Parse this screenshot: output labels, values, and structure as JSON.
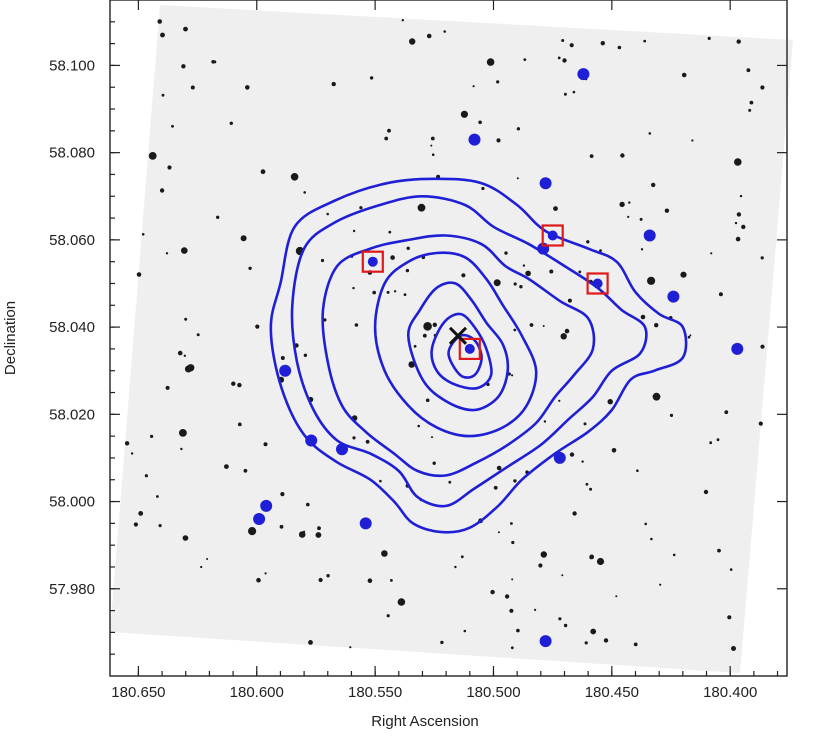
{
  "chart_data": {
    "type": "scatter",
    "title": "",
    "xlabel": "Right Ascension",
    "ylabel": "Declination",
    "xlim": [
      180.662,
      180.376
    ],
    "ylim": [
      57.96,
      58.115
    ],
    "x_ticks": [
      180.65,
      180.6,
      180.55,
      180.5,
      180.45,
      180.4
    ],
    "x_tick_labels": [
      "180.650",
      "180.600",
      "180.550",
      "180.500",
      "180.450",
      "180.400"
    ],
    "y_ticks": [
      57.98,
      58.0,
      58.02,
      58.04,
      58.06,
      58.08,
      58.1
    ],
    "y_tick_labels": [
      "57.980",
      "58.000",
      "58.020",
      "58.040",
      "58.060",
      "58.080",
      "58.100"
    ],
    "grid": false,
    "background": "inverted grayscale sky image with dark point sources",
    "colors": {
      "contour": "#1f1fd6",
      "galaxy": "#1f1fd6",
      "box": "#e01818",
      "cross": "#111111",
      "frame": "#222222"
    },
    "center_cross": {
      "x": 180.515,
      "y": 58.038
    },
    "galaxies": [
      {
        "x": 180.462,
        "y": 58.098
      },
      {
        "x": 180.508,
        "y": 58.083
      },
      {
        "x": 180.478,
        "y": 58.073
      },
      {
        "x": 180.434,
        "y": 58.061
      },
      {
        "x": 180.424,
        "y": 58.047
      },
      {
        "x": 180.397,
        "y": 58.035
      },
      {
        "x": 180.588,
        "y": 58.03
      },
      {
        "x": 180.577,
        "y": 58.014
      },
      {
        "x": 180.564,
        "y": 58.012
      },
      {
        "x": 180.472,
        "y": 58.01
      },
      {
        "x": 180.599,
        "y": 57.996
      },
      {
        "x": 180.554,
        "y": 57.995
      },
      {
        "x": 180.478,
        "y": 57.968
      },
      {
        "x": 180.479,
        "y": 58.058
      },
      {
        "x": 180.596,
        "y": 57.999
      }
    ],
    "boxed_members": [
      {
        "x": 180.551,
        "y": 58.055
      },
      {
        "x": 180.475,
        "y": 58.061
      },
      {
        "x": 180.456,
        "y": 58.05
      },
      {
        "x": 180.51,
        "y": 58.035
      }
    ],
    "contours": [
      {
        "level": 1,
        "points": [
          [
            180.59,
            58.05
          ],
          [
            180.584,
            58.063
          ],
          [
            180.567,
            58.069
          ],
          [
            180.545,
            58.073
          ],
          [
            180.525,
            58.074
          ],
          [
            180.505,
            58.073
          ],
          [
            180.49,
            58.068
          ],
          [
            180.478,
            58.062
          ],
          [
            180.46,
            58.058
          ],
          [
            180.448,
            58.055
          ],
          [
            180.44,
            58.048
          ],
          [
            180.43,
            58.043
          ],
          [
            180.42,
            58.04
          ],
          [
            180.42,
            58.033
          ],
          [
            180.432,
            58.03
          ],
          [
            180.442,
            58.028
          ],
          [
            180.45,
            58.021
          ],
          [
            180.46,
            58.016
          ],
          [
            180.474,
            58.011
          ],
          [
            180.488,
            58.005
          ],
          [
            180.498,
            57.999
          ],
          [
            180.51,
            57.994
          ],
          [
            180.522,
            57.993
          ],
          [
            180.534,
            57.995
          ],
          [
            180.542,
            58.0
          ],
          [
            180.552,
            58.005
          ],
          [
            180.566,
            58.009
          ],
          [
            180.578,
            58.014
          ],
          [
            180.586,
            58.021
          ],
          [
            180.592,
            58.031
          ],
          [
            180.594,
            58.041
          ],
          [
            180.59,
            58.05
          ]
        ]
      },
      {
        "level": 2,
        "points": [
          [
            180.585,
            58.045
          ],
          [
            180.58,
            58.058
          ],
          [
            180.567,
            58.064
          ],
          [
            180.548,
            58.068
          ],
          [
            180.53,
            58.07
          ],
          [
            180.512,
            58.068
          ],
          [
            180.5,
            58.063
          ],
          [
            180.485,
            58.059
          ],
          [
            180.47,
            58.054
          ],
          [
            180.456,
            58.049
          ],
          [
            180.446,
            58.044
          ],
          [
            180.436,
            58.04
          ],
          [
            180.438,
            58.034
          ],
          [
            180.45,
            58.03
          ],
          [
            180.458,
            58.024
          ],
          [
            180.468,
            58.019
          ],
          [
            180.48,
            58.013
          ],
          [
            180.494,
            58.008
          ],
          [
            180.508,
            58.003
          ],
          [
            180.52,
            57.999
          ],
          [
            180.532,
            58.001
          ],
          [
            180.54,
            58.007
          ],
          [
            180.552,
            58.011
          ],
          [
            180.566,
            58.014
          ],
          [
            180.576,
            58.021
          ],
          [
            180.583,
            58.032
          ],
          [
            180.585,
            58.045
          ]
        ]
      },
      {
        "level": 3,
        "points": [
          [
            180.572,
            58.044
          ],
          [
            180.566,
            58.054
          ],
          [
            180.552,
            58.058
          ],
          [
            180.536,
            58.06
          ],
          [
            180.52,
            58.061
          ],
          [
            180.505,
            58.059
          ],
          [
            180.495,
            58.054
          ],
          [
            180.485,
            58.051
          ],
          [
            180.472,
            58.046
          ],
          [
            180.46,
            58.042
          ],
          [
            180.458,
            58.035
          ],
          [
            180.466,
            58.029
          ],
          [
            180.474,
            58.024
          ],
          [
            180.482,
            58.018
          ],
          [
            180.494,
            58.013
          ],
          [
            180.507,
            58.009
          ],
          [
            180.52,
            58.006
          ],
          [
            180.532,
            58.007
          ],
          [
            180.542,
            58.011
          ],
          [
            180.554,
            58.016
          ],
          [
            180.564,
            58.022
          ],
          [
            180.57,
            58.032
          ],
          [
            180.572,
            58.044
          ]
        ]
      },
      {
        "level": 4,
        "points": [
          [
            180.55,
            58.04
          ],
          [
            180.546,
            58.05
          ],
          [
            180.536,
            58.055
          ],
          [
            180.524,
            58.057
          ],
          [
            180.512,
            58.056
          ],
          [
            180.503,
            58.051
          ],
          [
            180.496,
            58.045
          ],
          [
            180.488,
            58.038
          ],
          [
            180.482,
            58.03
          ],
          [
            180.486,
            58.022
          ],
          [
            180.496,
            58.017
          ],
          [
            180.51,
            58.015
          ],
          [
            180.524,
            58.017
          ],
          [
            180.536,
            58.022
          ],
          [
            180.546,
            58.03
          ],
          [
            180.55,
            58.04
          ]
        ]
      },
      {
        "level": 5,
        "points": [
          [
            180.536,
            58.038
          ],
          [
            180.531,
            58.044
          ],
          [
            180.524,
            58.049
          ],
          [
            180.516,
            58.05
          ],
          [
            180.509,
            58.046
          ],
          [
            180.503,
            58.041
          ],
          [
            180.496,
            58.036
          ],
          [
            180.494,
            58.03
          ],
          [
            180.498,
            58.024
          ],
          [
            180.508,
            58.021
          ],
          [
            180.52,
            58.023
          ],
          [
            180.53,
            58.028
          ],
          [
            180.536,
            58.038
          ]
        ]
      },
      {
        "level": 6,
        "points": [
          [
            180.526,
            58.035
          ],
          [
            180.521,
            58.041
          ],
          [
            180.514,
            58.043
          ],
          [
            180.508,
            58.04
          ],
          [
            180.503,
            58.035
          ],
          [
            180.501,
            58.029
          ],
          [
            180.507,
            58.026
          ],
          [
            180.517,
            58.027
          ],
          [
            180.524,
            58.03
          ],
          [
            180.526,
            58.035
          ]
        ]
      },
      {
        "level": 7,
        "points": [
          [
            180.519,
            58.034
          ],
          [
            180.514,
            58.038
          ],
          [
            180.508,
            58.037
          ],
          [
            180.505,
            58.033
          ],
          [
            180.508,
            58.029
          ],
          [
            180.514,
            58.029
          ],
          [
            180.519,
            58.034
          ]
        ]
      }
    ]
  }
}
